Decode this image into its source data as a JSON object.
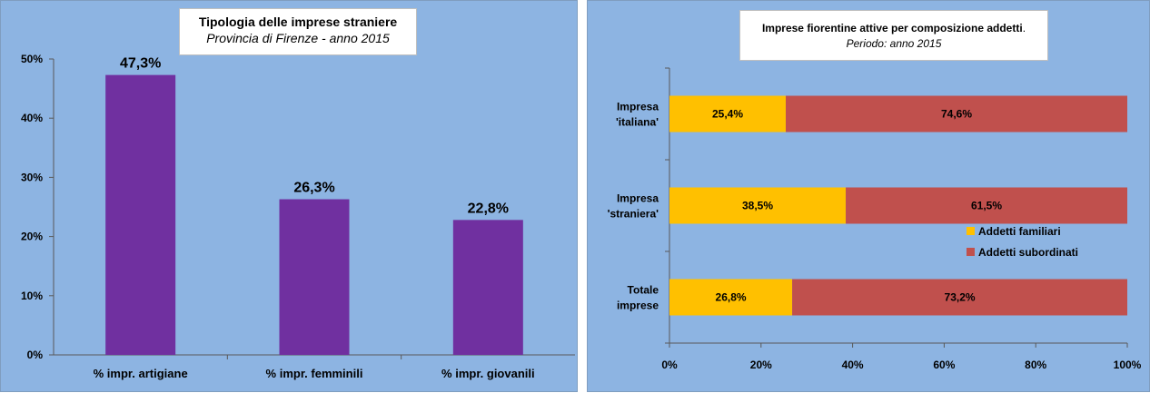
{
  "chart_data": [
    {
      "type": "bar",
      "title": "Tipologia delle imprese straniere",
      "subtitle": "Provincia di Firenze - anno 2015",
      "categories": [
        "% impr. artigiane",
        "% impr. femminili",
        "% impr.  giovanili"
      ],
      "values": [
        47.3,
        26.3,
        22.8
      ],
      "data_labels": [
        "47,3%",
        "26,3%",
        "22,8%"
      ],
      "y_ticks": [
        "0%",
        "10%",
        "20%",
        "30%",
        "40%",
        "50%"
      ],
      "ylim": [
        0,
        50
      ],
      "bar_color": "#7030a0",
      "background": "#8db4e2",
      "grid": false,
      "xlabel": "",
      "ylabel": ""
    },
    {
      "type": "bar",
      "orientation": "horizontal",
      "stacked": "percent",
      "title": "Imprese fiorentine attive per composizione addetti",
      "title_suffix": ".",
      "subtitle": "Periodo: anno 2015",
      "categories": [
        [
          "Impresa",
          "'italiana'"
        ],
        [
          "Impresa",
          "'straniera'"
        ],
        [
          "Totale",
          "imprese"
        ]
      ],
      "series": [
        {
          "name": "Addetti familiari",
          "color": "#ffc000",
          "values": [
            25.4,
            38.5,
            26.8
          ],
          "labels": [
            "25,4%",
            "38,5%",
            "26,8%"
          ]
        },
        {
          "name": "Addetti subordinati",
          "color": "#c0504d",
          "values": [
            74.6,
            61.5,
            73.2
          ],
          "labels": [
            "74,6%",
            "61,5%",
            "73,2%"
          ]
        }
      ],
      "x_ticks": [
        "0%",
        "20%",
        "40%",
        "60%",
        "80%",
        "100%"
      ],
      "xlim": [
        0,
        100
      ],
      "legend": "center-right",
      "background": "#8db4e2",
      "grid": false,
      "xlabel": "",
      "ylabel": ""
    }
  ]
}
